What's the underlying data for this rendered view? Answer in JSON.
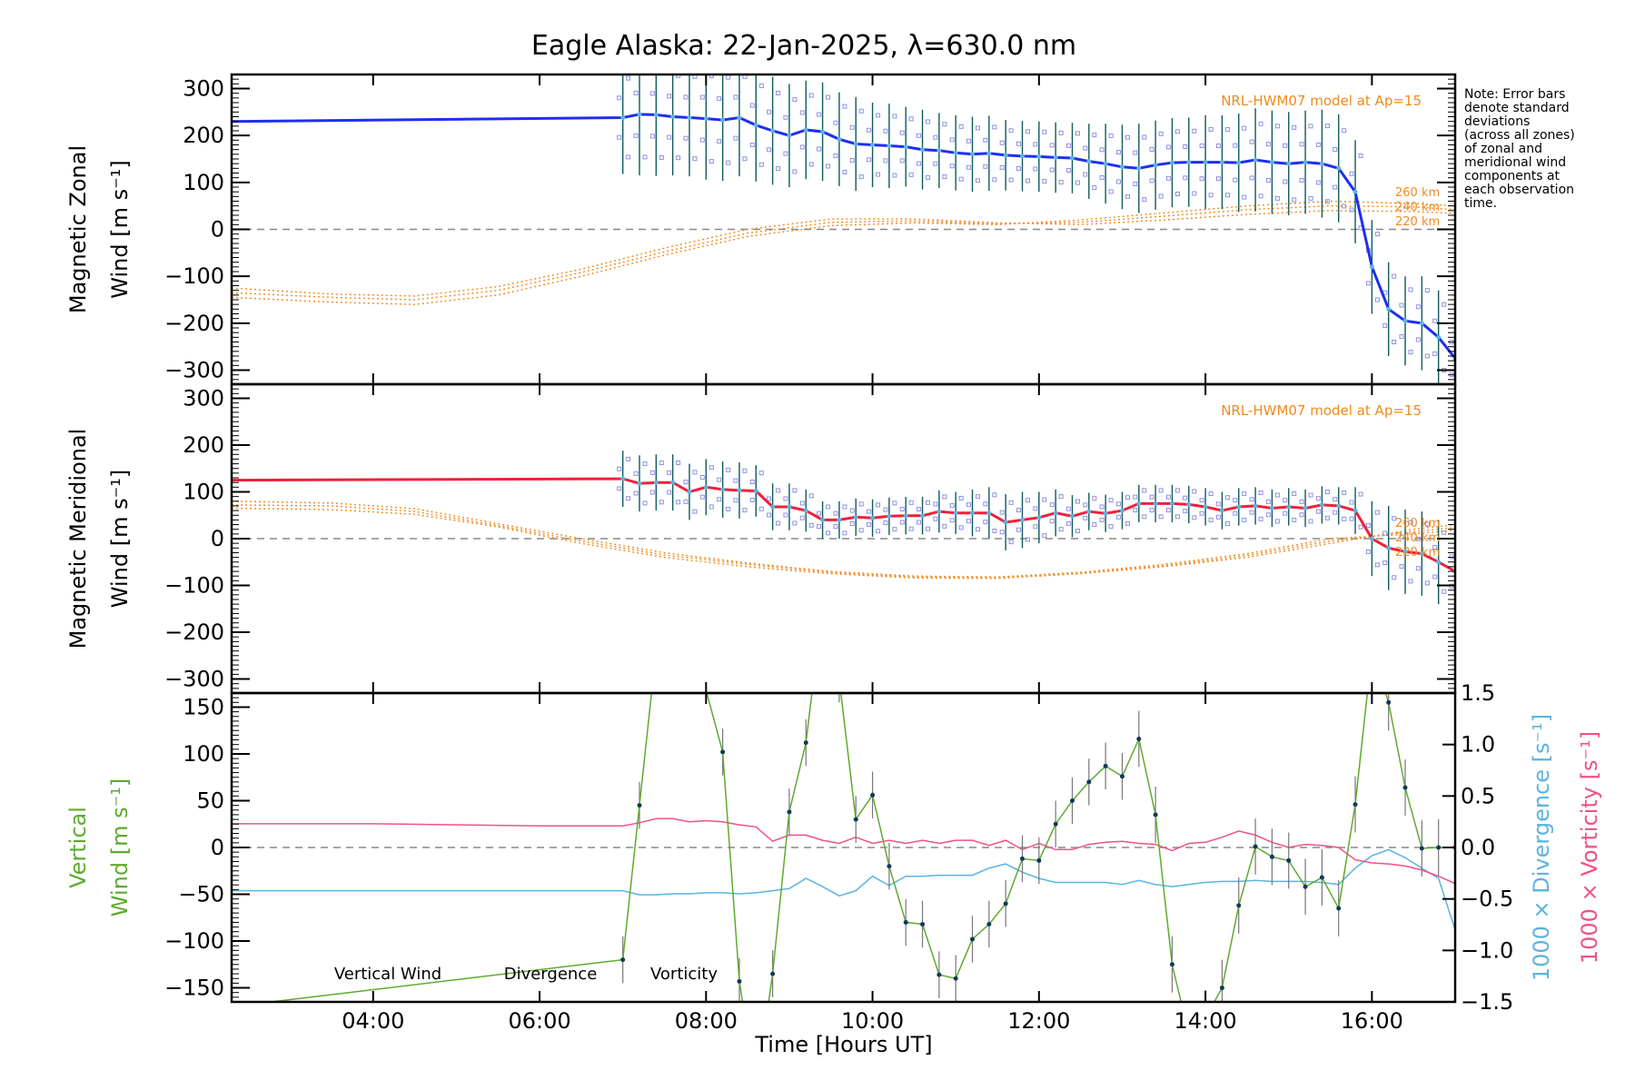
{
  "chart_data": {
    "title": "Eagle Alaska: 22-Jan-2025, λ=630.0 nm",
    "xlabel": "Time [Hours UT]",
    "xlim": [
      2.3,
      17.0
    ],
    "x_ticks": [
      4,
      6,
      8,
      10,
      12,
      14,
      16
    ],
    "x_tick_labels": [
      "04:00",
      "06:00",
      "08:00",
      "10:00",
      "12:00",
      "14:00",
      "16:00"
    ],
    "note": [
      "Note: Error bars",
      "denote standard",
      "deviations",
      "(across all zones)",
      "of zonal and",
      "meridional wind",
      "components at",
      "each observation",
      "time."
    ],
    "colors": {
      "zonal": "#1f2ef0",
      "meridional": "#f0203a",
      "model": "#f08a1e",
      "vertical": "#5faa2e",
      "divergence": "#5ab4e0",
      "vorticity": "#f0508a",
      "scatter": "#8f8fe0",
      "errorbar": "#0f5a5a"
    },
    "panels": [
      {
        "type": "line",
        "name": "zonal",
        "ylabel": [
          "Magnetic Zonal",
          "Wind [m s⁻¹]"
        ],
        "ylim": [
          -330,
          330
        ],
        "y_ticks": [
          -300,
          -200,
          -100,
          0,
          100,
          200,
          300
        ],
        "y_tick_labels": [
          "−300",
          "−200",
          "−100",
          "0",
          "100",
          "200",
          "300"
        ],
        "model_label": "NRL-HWM07 model at Ap=15",
        "model_levels": [
          "260 km",
          "240 km",
          "220 km"
        ],
        "series": {
          "x": [
            2.3,
            7.0,
            7.2,
            7.4,
            7.6,
            7.8,
            8.0,
            8.2,
            8.4,
            8.6,
            8.8,
            9.0,
            9.2,
            9.4,
            9.6,
            9.8,
            10.0,
            10.2,
            10.4,
            10.6,
            10.8,
            11.0,
            11.2,
            11.4,
            11.6,
            11.8,
            12.0,
            12.2,
            12.4,
            12.6,
            12.8,
            13.0,
            13.2,
            13.4,
            13.6,
            13.8,
            14.0,
            14.2,
            14.4,
            14.6,
            14.8,
            15.0,
            15.2,
            15.4,
            15.6,
            15.8,
            16.0,
            16.2,
            16.4,
            16.6,
            16.8,
            17.0
          ],
          "y": [
            230,
            238,
            245,
            244,
            240,
            238,
            236,
            233,
            238,
            222,
            210,
            200,
            212,
            208,
            192,
            182,
            180,
            178,
            176,
            170,
            168,
            163,
            160,
            162,
            158,
            156,
            155,
            153,
            152,
            145,
            140,
            133,
            130,
            137,
            142,
            143,
            143,
            143,
            142,
            148,
            143,
            140,
            143,
            140,
            130,
            80,
            -80,
            -170,
            -195,
            -200,
            -230,
            -275
          ],
          "err": [
            0,
            120,
            130,
            130,
            125,
            125,
            130,
            130,
            125,
            120,
            115,
            110,
            105,
            105,
            100,
            100,
            90,
            90,
            85,
            85,
            80,
            80,
            80,
            80,
            75,
            75,
            75,
            75,
            75,
            80,
            85,
            90,
            95,
            95,
            95,
            95,
            100,
            100,
            105,
            110,
            110,
            110,
            110,
            115,
            115,
            110,
            100,
            100,
            95,
            100,
            100,
            100
          ]
        },
        "model": {
          "x": [
            2.3,
            3.5,
            4.5,
            5.5,
            6.5,
            7.5,
            8.5,
            9.5,
            10.5,
            11.5,
            12.5,
            13.5,
            14.5,
            15.5,
            16.5,
            17.0
          ],
          "y_260": [
            -145,
            -155,
            -160,
            -140,
            -100,
            -55,
            -15,
            8,
            14,
            10,
            20,
            35,
            50,
            60,
            55,
            50
          ],
          "y_240": [
            -135,
            -145,
            -150,
            -130,
            -92,
            -48,
            -8,
            15,
            18,
            12,
            15,
            28,
            42,
            50,
            48,
            42
          ],
          "y_220": [
            -125,
            -138,
            -142,
            -122,
            -85,
            -40,
            0,
            22,
            22,
            14,
            10,
            20,
            32,
            40,
            38,
            34
          ]
        }
      },
      {
        "type": "line",
        "name": "meridional",
        "ylabel": [
          "Magnetic Meridional",
          "Wind [m s⁻¹]"
        ],
        "ylim": [
          -330,
          330
        ],
        "y_ticks": [
          -300,
          -200,
          -100,
          0,
          100,
          200,
          300
        ],
        "y_tick_labels": [
          "−300",
          "−200",
          "−100",
          "0",
          "100",
          "200",
          "300"
        ],
        "model_label": "NRL-HWM07 model at Ap=15",
        "model_levels": [
          "260 km",
          "240 km",
          "220 km"
        ],
        "series": {
          "x": [
            2.3,
            7.0,
            7.2,
            7.4,
            7.6,
            7.8,
            8.0,
            8.2,
            8.4,
            8.6,
            8.8,
            9.0,
            9.2,
            9.4,
            9.6,
            9.8,
            10.0,
            10.2,
            10.4,
            10.6,
            10.8,
            11.0,
            11.2,
            11.4,
            11.6,
            11.8,
            12.0,
            12.2,
            12.4,
            12.6,
            12.8,
            13.0,
            13.2,
            13.4,
            13.6,
            13.8,
            14.0,
            14.2,
            14.4,
            14.6,
            14.8,
            15.0,
            15.2,
            15.4,
            15.6,
            15.8,
            16.0,
            16.2,
            16.4,
            16.6,
            16.8,
            17.0
          ],
          "y": [
            125,
            128,
            118,
            120,
            120,
            100,
            110,
            105,
            103,
            102,
            68,
            68,
            60,
            40,
            40,
            46,
            44,
            48,
            49,
            49,
            58,
            55,
            55,
            55,
            35,
            40,
            45,
            55,
            48,
            58,
            54,
            60,
            75,
            75,
            75,
            73,
            68,
            60,
            68,
            70,
            65,
            68,
            65,
            72,
            70,
            60,
            0,
            -20,
            -28,
            -32,
            -50,
            -70
          ],
          "err": [
            0,
            60,
            60,
            60,
            60,
            60,
            60,
            60,
            60,
            55,
            50,
            50,
            45,
            40,
            40,
            40,
            40,
            40,
            40,
            40,
            45,
            45,
            50,
            55,
            60,
            60,
            55,
            50,
            45,
            40,
            40,
            40,
            40,
            40,
            40,
            40,
            40,
            40,
            40,
            40,
            40,
            40,
            40,
            40,
            40,
            50,
            80,
            90,
            90,
            90,
            90,
            90
          ]
        },
        "model": {
          "x": [
            2.3,
            3.5,
            4.5,
            5.5,
            6.5,
            7.5,
            8.5,
            9.5,
            10.5,
            11.5,
            12.5,
            13.5,
            14.5,
            15.5,
            16.5,
            17.0
          ],
          "y_260": [
            65,
            62,
            52,
            25,
            -10,
            -40,
            -60,
            -75,
            -84,
            -85,
            -75,
            -60,
            -40,
            -10,
            20,
            30
          ],
          "y_240": [
            72,
            70,
            58,
            28,
            -5,
            -35,
            -55,
            -72,
            -82,
            -84,
            -74,
            -58,
            -36,
            -5,
            15,
            24
          ],
          "y_220": [
            80,
            76,
            64,
            32,
            0,
            -30,
            -52,
            -70,
            -80,
            -82,
            -72,
            -55,
            -32,
            0,
            10,
            18
          ]
        }
      },
      {
        "type": "line",
        "name": "vertical",
        "ylabel": [
          "Vertical",
          "Wind [m s⁻¹]"
        ],
        "ylim": [
          -165,
          165
        ],
        "y_ticks": [
          -150,
          -100,
          -50,
          0,
          50,
          100,
          150
        ],
        "y_tick_labels": [
          "−150",
          "−100",
          "−50",
          "0",
          "50",
          "100",
          "150"
        ],
        "y2lim": [
          -1.5,
          1.5
        ],
        "y2_ticks": [
          -1.5,
          -1.0,
          -0.5,
          0.0,
          0.5,
          1.0,
          1.5
        ],
        "y2_tick_labels": [
          "−1.5",
          "−1.0",
          "−0.5",
          "0.0",
          "0.5",
          "1.0",
          "1.5"
        ],
        "y2label_div": "1000 × Divergence [s⁻¹]",
        "y2label_vort": "1000 × Vorticity [s⁻¹]",
        "legend": [
          "Vertical Wind",
          "Divergence",
          "Vorticity"
        ],
        "vertical": {
          "x": [
            2.3,
            7.0,
            7.2,
            7.4,
            7.6,
            8.2,
            8.4,
            8.6,
            8.8,
            9.0,
            9.2,
            9.4,
            9.6,
            9.8,
            10.0,
            10.2,
            10.4,
            10.6,
            10.8,
            11.0,
            11.2,
            11.4,
            11.6,
            11.8,
            12.0,
            12.2,
            12.4,
            12.6,
            12.8,
            13.0,
            13.2,
            13.4,
            13.6,
            13.8,
            14.0,
            14.2,
            14.4,
            14.6,
            14.8,
            15.0,
            15.2,
            15.4,
            15.6,
            15.8,
            16.0,
            16.2,
            16.4,
            16.6,
            16.8,
            17.0
          ],
          "y": [
            -170,
            -120,
            45,
            210,
            300,
            102,
            -143,
            -260,
            -135,
            38,
            112,
            260,
            180,
            30,
            56,
            -20,
            -80,
            -82,
            -136,
            -140,
            -98,
            -82,
            -60,
            -12,
            -14,
            25,
            50,
            70,
            87,
            76,
            116,
            35,
            -125,
            -200,
            -182,
            -150,
            -62,
            1,
            -10,
            -14,
            -42,
            -32,
            -65,
            46,
            210,
            155,
            64,
            -1,
            0,
            0
          ],
          "err": [
            0,
            25,
            25,
            25,
            25,
            25,
            25,
            25,
            25,
            25,
            25,
            25,
            25,
            25,
            25,
            25,
            25,
            25,
            25,
            25,
            25,
            25,
            25,
            25,
            25,
            25,
            25,
            25,
            25,
            25,
            30,
            30,
            30,
            30,
            30,
            30,
            30,
            30,
            30,
            30,
            30,
            30,
            30,
            30,
            30,
            30,
            30,
            30,
            30,
            30
          ]
        },
        "divergence": {
          "x": [
            2.3,
            4.0,
            6.0,
            7.0,
            7.2,
            7.4,
            7.6,
            7.8,
            8.0,
            8.2,
            8.4,
            8.6,
            8.8,
            9.0,
            9.2,
            9.4,
            9.6,
            9.8,
            10.0,
            10.2,
            10.4,
            10.6,
            10.8,
            11.0,
            11.2,
            11.4,
            11.6,
            11.8,
            12.0,
            12.2,
            12.4,
            12.6,
            12.8,
            13.0,
            13.2,
            13.4,
            13.6,
            13.8,
            14.0,
            14.2,
            14.4,
            14.6,
            14.8,
            15.0,
            15.2,
            15.4,
            15.6,
            15.8,
            16.0,
            16.2,
            16.4,
            16.6,
            16.8,
            17.0
          ],
          "y": [
            -0.42,
            -0.42,
            -0.42,
            -0.42,
            -0.46,
            -0.46,
            -0.45,
            -0.45,
            -0.44,
            -0.44,
            -0.45,
            -0.44,
            -0.42,
            -0.4,
            -0.3,
            -0.38,
            -0.47,
            -0.42,
            -0.28,
            -0.37,
            -0.28,
            -0.28,
            -0.27,
            -0.27,
            -0.27,
            -0.2,
            -0.16,
            -0.24,
            -0.3,
            -0.34,
            -0.34,
            -0.34,
            -0.34,
            -0.36,
            -0.32,
            -0.36,
            -0.38,
            -0.36,
            -0.34,
            -0.33,
            -0.33,
            -0.32,
            -0.33,
            -0.33,
            -0.33,
            -0.34,
            -0.36,
            -0.2,
            -0.08,
            -0.02,
            -0.1,
            -0.2,
            -0.3,
            -0.8
          ]
        },
        "vorticity": {
          "x": [
            2.3,
            4.0,
            6.0,
            7.0,
            7.2,
            7.4,
            7.6,
            7.8,
            8.0,
            8.2,
            8.4,
            8.6,
            8.8,
            9.0,
            9.2,
            9.4,
            9.6,
            9.8,
            10.0,
            10.2,
            10.4,
            10.6,
            10.8,
            11.0,
            11.2,
            11.4,
            11.6,
            11.8,
            12.0,
            12.2,
            12.4,
            12.6,
            12.8,
            13.0,
            13.2,
            13.4,
            13.6,
            13.8,
            14.0,
            14.2,
            14.4,
            14.6,
            14.8,
            15.0,
            15.2,
            15.4,
            15.6,
            15.8,
            16.0,
            16.2,
            16.4,
            16.6,
            16.8,
            17.0
          ],
          "y": [
            0.23,
            0.23,
            0.21,
            0.21,
            0.24,
            0.28,
            0.28,
            0.25,
            0.26,
            0.25,
            0.22,
            0.2,
            0.06,
            0.12,
            0.12,
            0.07,
            0.04,
            0.1,
            0.04,
            0.07,
            0.04,
            0.07,
            0.04,
            0.07,
            0.07,
            0.02,
            0.07,
            -0.02,
            0.04,
            -0.02,
            -0.02,
            0.03,
            0.05,
            0.06,
            0.04,
            0.03,
            -0.03,
            0.04,
            0.05,
            0.1,
            0.16,
            0.12,
            0.05,
            0.0,
            0.03,
            0.02,
            0.0,
            -0.12,
            -0.15,
            -0.16,
            -0.18,
            -0.22,
            -0.28,
            -0.35
          ]
        }
      }
    ]
  }
}
